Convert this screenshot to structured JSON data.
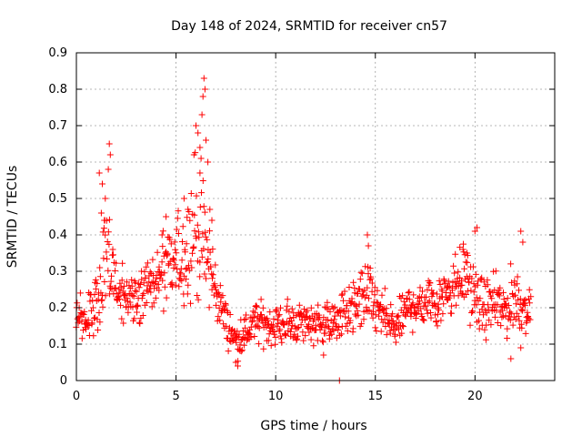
{
  "chart_data": {
    "type": "scatter",
    "title": "Day 148 of 2024, SRMTID for receiver cn57",
    "xlabel": "GPS time / hours",
    "ylabel": "SRMTID / TECUs",
    "xlim": [
      0,
      24
    ],
    "ylim": [
      0,
      0.9
    ],
    "xticks": [
      0,
      5,
      10,
      15,
      20
    ],
    "yticks": [
      0,
      0.1,
      0.2,
      0.3,
      0.4,
      0.5,
      0.6,
      0.7,
      0.8,
      0.9
    ],
    "xtick_labels": [
      "0",
      "5",
      "10",
      "15",
      "20"
    ],
    "ytick_labels": [
      "0",
      "0.1",
      "0.2",
      "0.3",
      "0.4",
      "0.5",
      "0.6",
      "0.7",
      "0.8",
      "0.9"
    ],
    "grid": true,
    "marker": "plus",
    "series": [
      {
        "name": "SRMTID",
        "color": "#ff0000",
        "envelope": [
          {
            "t": 0.0,
            "center": 0.19,
            "spread": 0.06
          },
          {
            "t": 0.5,
            "center": 0.17,
            "spread": 0.06
          },
          {
            "t": 1.0,
            "center": 0.2,
            "spread": 0.08
          },
          {
            "t": 1.5,
            "center": 0.33,
            "spread": 0.15
          },
          {
            "t": 2.0,
            "center": 0.26,
            "spread": 0.08
          },
          {
            "t": 2.5,
            "center": 0.22,
            "spread": 0.06
          },
          {
            "t": 3.0,
            "center": 0.24,
            "spread": 0.08
          },
          {
            "t": 3.5,
            "center": 0.25,
            "spread": 0.08
          },
          {
            "t": 4.0,
            "center": 0.27,
            "spread": 0.09
          },
          {
            "t": 4.5,
            "center": 0.3,
            "spread": 0.1
          },
          {
            "t": 5.0,
            "center": 0.32,
            "spread": 0.11
          },
          {
            "t": 5.5,
            "center": 0.36,
            "spread": 0.13
          },
          {
            "t": 6.0,
            "center": 0.43,
            "spread": 0.18
          },
          {
            "t": 6.5,
            "center": 0.35,
            "spread": 0.15
          },
          {
            "t": 7.0,
            "center": 0.25,
            "spread": 0.08
          },
          {
            "t": 7.5,
            "center": 0.16,
            "spread": 0.05
          },
          {
            "t": 8.0,
            "center": 0.11,
            "spread": 0.04
          },
          {
            "t": 8.5,
            "center": 0.13,
            "spread": 0.05
          },
          {
            "t": 9.0,
            "center": 0.16,
            "spread": 0.05
          },
          {
            "t": 10.0,
            "center": 0.15,
            "spread": 0.05
          },
          {
            "t": 11.0,
            "center": 0.16,
            "spread": 0.05
          },
          {
            "t": 12.0,
            "center": 0.16,
            "spread": 0.05
          },
          {
            "t": 13.0,
            "center": 0.16,
            "spread": 0.05
          },
          {
            "t": 13.5,
            "center": 0.19,
            "spread": 0.07
          },
          {
            "t": 14.0,
            "center": 0.2,
            "spread": 0.07
          },
          {
            "t": 14.5,
            "center": 0.24,
            "spread": 0.09
          },
          {
            "t": 15.0,
            "center": 0.2,
            "spread": 0.07
          },
          {
            "t": 15.5,
            "center": 0.17,
            "spread": 0.06
          },
          {
            "t": 16.0,
            "center": 0.14,
            "spread": 0.05
          },
          {
            "t": 16.5,
            "center": 0.19,
            "spread": 0.06
          },
          {
            "t": 17.0,
            "center": 0.21,
            "spread": 0.06
          },
          {
            "t": 18.0,
            "center": 0.22,
            "spread": 0.07
          },
          {
            "t": 19.0,
            "center": 0.27,
            "spread": 0.08
          },
          {
            "t": 19.5,
            "center": 0.3,
            "spread": 0.09
          },
          {
            "t": 20.0,
            "center": 0.22,
            "spread": 0.07
          },
          {
            "t": 20.5,
            "center": 0.2,
            "spread": 0.07
          },
          {
            "t": 21.0,
            "center": 0.21,
            "spread": 0.07
          },
          {
            "t": 21.5,
            "center": 0.19,
            "spread": 0.07
          },
          {
            "t": 22.0,
            "center": 0.23,
            "spread": 0.09
          },
          {
            "t": 22.5,
            "center": 0.2,
            "spread": 0.06
          },
          {
            "t": 22.8,
            "center": 0.19,
            "spread": 0.05
          }
        ],
        "points": [
          [
            1.15,
            0.57
          ],
          [
            1.3,
            0.54
          ],
          [
            1.45,
            0.5
          ],
          [
            1.6,
            0.58
          ],
          [
            1.65,
            0.65
          ],
          [
            1.7,
            0.62
          ],
          [
            1.25,
            0.46
          ],
          [
            1.4,
            0.44
          ],
          [
            5.4,
            0.5
          ],
          [
            5.6,
            0.47
          ],
          [
            5.9,
            0.62
          ],
          [
            6.0,
            0.7
          ],
          [
            6.1,
            0.68
          ],
          [
            6.2,
            0.64
          ],
          [
            6.3,
            0.73
          ],
          [
            6.35,
            0.78
          ],
          [
            6.4,
            0.83
          ],
          [
            6.45,
            0.8
          ],
          [
            6.5,
            0.66
          ],
          [
            6.6,
            0.6
          ],
          [
            6.7,
            0.47
          ],
          [
            6.8,
            0.44
          ],
          [
            6.2,
            0.57
          ],
          [
            4.5,
            0.45
          ],
          [
            4.3,
            0.4
          ],
          [
            8.0,
            0.05
          ],
          [
            8.1,
            0.04
          ],
          [
            13.2,
            0.0
          ],
          [
            12.4,
            0.07
          ],
          [
            14.6,
            0.4
          ],
          [
            14.65,
            0.37
          ],
          [
            19.4,
            0.36
          ],
          [
            19.6,
            0.35
          ],
          [
            20.0,
            0.41
          ],
          [
            20.1,
            0.42
          ],
          [
            22.3,
            0.41
          ],
          [
            22.4,
            0.38
          ],
          [
            21.8,
            0.06
          ],
          [
            22.3,
            0.09
          ]
        ]
      }
    ]
  }
}
